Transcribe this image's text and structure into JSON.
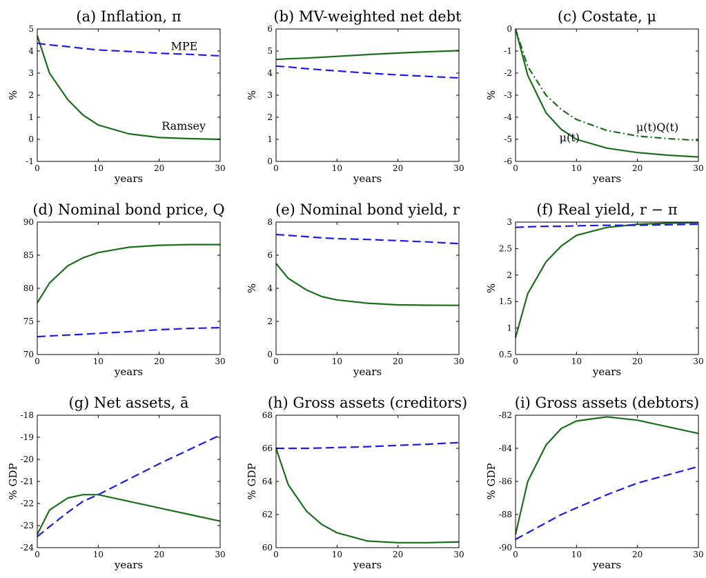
{
  "colors": {
    "ramsey": "#1a6e1a",
    "mpe": "#1a1aee",
    "axis": "#000000",
    "background": "#ffffff"
  },
  "chart_data": [
    {
      "type": "line",
      "title": "(a) Inflation, π",
      "xlabel": "years",
      "ylabel": "%",
      "xlim": [
        0,
        30
      ],
      "ylim": [
        -1,
        5
      ],
      "xticks": [
        0,
        10,
        20,
        30
      ],
      "yticks": [
        -1,
        0,
        1,
        2,
        3,
        4,
        5
      ],
      "grid": false,
      "x": [
        0,
        2,
        5,
        7.5,
        10,
        15,
        20,
        25,
        30
      ],
      "series": [
        {
          "name": "Ramsey",
          "style": "solid",
          "values": [
            4.7,
            3.0,
            1.8,
            1.1,
            0.65,
            0.25,
            0.08,
            0.03,
            0.0
          ]
        },
        {
          "name": "MPE",
          "style": "dashed",
          "values": [
            4.35,
            4.28,
            4.2,
            4.12,
            4.05,
            3.98,
            3.9,
            3.85,
            3.78
          ]
        }
      ],
      "annotations": [
        "MPE",
        "Ramsey"
      ]
    },
    {
      "type": "line",
      "title": "(b) MV-weighted net debt",
      "xlabel": "years",
      "ylabel": "%",
      "xlim": [
        0,
        30
      ],
      "ylim": [
        0,
        6
      ],
      "xticks": [
        0,
        10,
        20,
        30
      ],
      "yticks": [
        0,
        1,
        2,
        3,
        4,
        5,
        6
      ],
      "grid": false,
      "x": [
        0,
        2,
        5,
        7.5,
        10,
        15,
        20,
        25,
        30
      ],
      "series": [
        {
          "style": "solid",
          "values": [
            4.62,
            4.65,
            4.68,
            4.72,
            4.76,
            4.84,
            4.91,
            4.97,
            5.02
          ]
        },
        {
          "style": "dashed",
          "values": [
            4.32,
            4.28,
            4.2,
            4.15,
            4.1,
            4.0,
            3.92,
            3.85,
            3.78
          ]
        }
      ]
    },
    {
      "type": "line",
      "title": "(c) Costate, μ",
      "xlabel": "years",
      "ylabel": "%",
      "xlim": [
        0,
        30
      ],
      "ylim": [
        -6,
        0
      ],
      "xticks": [
        0,
        10,
        20,
        30
      ],
      "yticks": [
        -6,
        -5,
        -4,
        -3,
        -2,
        -1,
        0
      ],
      "grid": false,
      "x": [
        0,
        2,
        5,
        7.5,
        10,
        15,
        20,
        25,
        30
      ],
      "series": [
        {
          "name": "μ(t)",
          "style": "solid",
          "values": [
            0,
            -2.1,
            -3.8,
            -4.55,
            -5.0,
            -5.4,
            -5.6,
            -5.72,
            -5.8
          ]
        },
        {
          "name": "μ(t)Q(t)",
          "style": "dashdot",
          "values": [
            0,
            -1.7,
            -3.0,
            -3.65,
            -4.1,
            -4.6,
            -4.85,
            -4.97,
            -5.05
          ]
        }
      ],
      "annotations": [
        "μ(t)",
        "μ(t)Q(t)"
      ]
    },
    {
      "type": "line",
      "title": "(d) Nominal bond price, Q",
      "xlabel": "years",
      "ylabel": "",
      "xlim": [
        0,
        30
      ],
      "ylim": [
        70,
        90
      ],
      "xticks": [
        0,
        10,
        20,
        30
      ],
      "yticks": [
        70,
        75,
        80,
        85,
        90
      ],
      "grid": false,
      "x": [
        0,
        2,
        5,
        7.5,
        10,
        15,
        20,
        25,
        30
      ],
      "series": [
        {
          "style": "solid",
          "values": [
            77.8,
            80.8,
            83.4,
            84.6,
            85.4,
            86.2,
            86.5,
            86.6,
            86.6
          ]
        },
        {
          "style": "dashed",
          "values": [
            72.7,
            72.8,
            72.95,
            73.05,
            73.2,
            73.45,
            73.75,
            73.95,
            74.05
          ]
        }
      ]
    },
    {
      "type": "line",
      "title": "(e) Nominal bond yield, r",
      "xlabel": "years",
      "ylabel": "%",
      "xlim": [
        0,
        30
      ],
      "ylim": [
        0,
        8
      ],
      "xticks": [
        0,
        10,
        20,
        30
      ],
      "yticks": [
        0,
        2,
        4,
        6,
        8
      ],
      "grid": false,
      "x": [
        0,
        2,
        5,
        7.5,
        10,
        15,
        20,
        25,
        30
      ],
      "series": [
        {
          "style": "solid",
          "values": [
            5.5,
            4.6,
            3.9,
            3.5,
            3.3,
            3.1,
            3.0,
            2.98,
            2.97
          ]
        },
        {
          "style": "dashed",
          "values": [
            7.25,
            7.2,
            7.12,
            7.05,
            7.0,
            6.95,
            6.88,
            6.8,
            6.7
          ]
        }
      ]
    },
    {
      "type": "line",
      "title": "(f) Real yield, r − π",
      "xlabel": "years",
      "ylabel": "%",
      "xlim": [
        0,
        30
      ],
      "ylim": [
        0.5,
        3
      ],
      "xticks": [
        0,
        10,
        20,
        30
      ],
      "yticks": [
        0.5,
        1,
        1.5,
        2,
        2.5,
        3
      ],
      "grid": false,
      "x": [
        0,
        2,
        5,
        7.5,
        10,
        15,
        20,
        25,
        30
      ],
      "series": [
        {
          "style": "solid",
          "values": [
            0.82,
            1.65,
            2.25,
            2.55,
            2.75,
            2.9,
            2.96,
            2.98,
            2.99
          ]
        },
        {
          "style": "dashed",
          "values": [
            2.9,
            2.91,
            2.92,
            2.92,
            2.93,
            2.94,
            2.94,
            2.95,
            2.96
          ]
        }
      ]
    },
    {
      "type": "line",
      "title": "(g) Net assets, ā",
      "xlabel": "years",
      "ylabel": "% GDP",
      "xlim": [
        0,
        30
      ],
      "ylim": [
        -24,
        -18
      ],
      "xticks": [
        0,
        10,
        20,
        30
      ],
      "yticks": [
        -24,
        -23,
        -22,
        -21,
        -20,
        -19,
        -18
      ],
      "grid": false,
      "x": [
        0,
        2,
        5,
        7.5,
        10,
        15,
        20,
        25,
        30
      ],
      "series": [
        {
          "style": "solid",
          "values": [
            -23.4,
            -22.3,
            -21.75,
            -21.6,
            -21.6,
            -21.9,
            -22.2,
            -22.5,
            -22.8
          ]
        },
        {
          "style": "dashed",
          "values": [
            -23.5,
            -23.05,
            -22.4,
            -21.9,
            -21.6,
            -20.9,
            -20.2,
            -19.55,
            -18.9
          ]
        }
      ]
    },
    {
      "type": "line",
      "title": "(h) Gross assets (creditors)",
      "xlabel": "years",
      "ylabel": "% GDP",
      "xlim": [
        0,
        30
      ],
      "ylim": [
        60,
        68
      ],
      "xticks": [
        0,
        10,
        20,
        30
      ],
      "yticks": [
        60,
        62,
        64,
        66,
        68
      ],
      "grid": false,
      "x": [
        0,
        2,
        5,
        7.5,
        10,
        15,
        20,
        25,
        30
      ],
      "series": [
        {
          "style": "solid",
          "values": [
            66.0,
            63.8,
            62.2,
            61.4,
            60.9,
            60.4,
            60.3,
            60.3,
            60.35
          ]
        },
        {
          "style": "dashed",
          "values": [
            66.0,
            66.0,
            66.0,
            66.02,
            66.05,
            66.1,
            66.18,
            66.25,
            66.35
          ]
        }
      ]
    },
    {
      "type": "line",
      "title": "(i) Gross assets (debtors)",
      "xlabel": "years",
      "ylabel": "% GDP",
      "xlim": [
        0,
        30
      ],
      "ylim": [
        -90,
        -82
      ],
      "xticks": [
        0,
        10,
        20,
        30
      ],
      "yticks": [
        -90,
        -88,
        -86,
        -84,
        -82
      ],
      "grid": false,
      "x": [
        0,
        2,
        5,
        7.5,
        10,
        15,
        20,
        25,
        30
      ],
      "series": [
        {
          "style": "solid",
          "values": [
            -89.2,
            -86.0,
            -83.8,
            -82.8,
            -82.35,
            -82.1,
            -82.3,
            -82.7,
            -83.1
          ]
        },
        {
          "style": "dashed",
          "values": [
            -89.5,
            -89.1,
            -88.5,
            -88.0,
            -87.6,
            -86.8,
            -86.1,
            -85.6,
            -85.1
          ]
        }
      ]
    }
  ]
}
